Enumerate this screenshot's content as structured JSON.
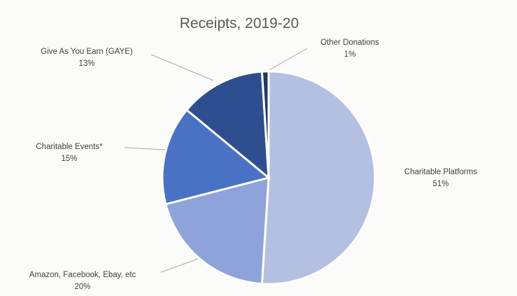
{
  "chart_data": {
    "type": "pie",
    "title": "Receipts, 2019-20",
    "start": "12 o'clock",
    "direction": "clockwise",
    "slices": [
      {
        "name": "Charitable Platforms",
        "value": 51,
        "label": "51%",
        "color": "#b4c0e2"
      },
      {
        "name": "Amazon, Facebook, Ebay, etc",
        "value": 20,
        "label": "20%",
        "color": "#8da3d9"
      },
      {
        "name": "Charitable Events*",
        "value": 15,
        "label": "15%",
        "color": "#4a72c4"
      },
      {
        "name": "Give As You Earn (GAYE)",
        "value": 13,
        "label": "13%",
        "color": "#2e4f8f"
      },
      {
        "name": "Other Donations",
        "value": 1,
        "label": "1%",
        "color": "#1f3864"
      }
    ]
  }
}
